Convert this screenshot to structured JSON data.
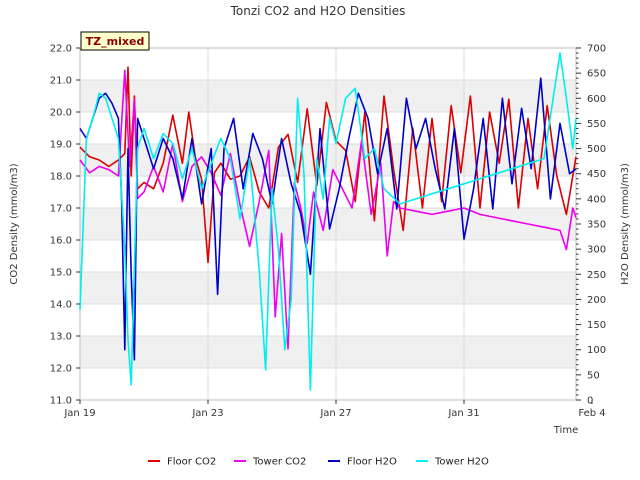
{
  "chart_data": {
    "type": "line",
    "title": "Tonzi CO2 and H2O Densities",
    "badge": "TZ_mixed",
    "xlabel": "Time",
    "ylabel": "CO2 Density (mmol/m3)",
    "y2label": "H2O Density (mmol/m3)",
    "xlim": [
      0,
      15.5
    ],
    "ylim": [
      11.0,
      22.0
    ],
    "y2lim": [
      0,
      700
    ],
    "x_ticks": [
      {
        "x": 0,
        "label": "Jan 19"
      },
      {
        "x": 4,
        "label": "Jan 23"
      },
      {
        "x": 8,
        "label": "Jan 27"
      },
      {
        "x": 12,
        "label": "Jan 31"
      },
      {
        "x": 16,
        "label": "Feb 4"
      }
    ],
    "y_ticks": [
      "11.0",
      "12.0",
      "13.0",
      "14.0",
      "15.0",
      "16.0",
      "17.0",
      "18.0",
      "19.0",
      "20.0",
      "21.0",
      "22.0"
    ],
    "y2_ticks": [
      "0",
      "50",
      "100",
      "150",
      "200",
      "250",
      "300",
      "350",
      "400",
      "450",
      "500",
      "550",
      "600",
      "650",
      "700"
    ],
    "grid": true,
    "legend_position": "bottom",
    "series": [
      {
        "name": "Floor CO2",
        "axis": "left",
        "color": "#dd0000",
        "x": [
          0,
          0.3,
          0.6,
          0.9,
          1.2,
          1.4,
          1.5,
          1.6,
          1.7,
          1.8,
          2.0,
          2.3,
          2.6,
          2.9,
          3.2,
          3.4,
          3.6,
          3.8,
          4.0,
          4.2,
          4.4,
          4.7,
          5.0,
          5.3,
          5.6,
          5.9,
          6.2,
          6.5,
          6.8,
          7.1,
          7.4,
          7.7,
          8.0,
          8.3,
          8.6,
          8.9,
          9.2,
          9.5,
          9.8,
          10.1,
          10.4,
          10.7,
          11.0,
          11.3,
          11.6,
          11.9,
          12.2,
          12.5,
          12.8,
          13.1,
          13.4,
          13.7,
          14.0,
          14.3,
          14.6,
          14.9,
          15.2,
          15.5
        ],
        "y": [
          18.9,
          18.6,
          18.5,
          18.3,
          18.5,
          18.7,
          21.4,
          18.0,
          20.5,
          17.6,
          17.8,
          17.6,
          18.4,
          19.9,
          18.4,
          20.0,
          18.6,
          17.9,
          15.3,
          18.1,
          18.4,
          17.9,
          18.0,
          18.6,
          17.5,
          17.0,
          18.9,
          19.3,
          17.8,
          20.1,
          17.7,
          20.3,
          19.1,
          18.8,
          17.2,
          20.0,
          16.6,
          20.5,
          18.2,
          16.3,
          19.5,
          17.0,
          19.8,
          17.2,
          20.2,
          18.1,
          20.5,
          17.0,
          20.0,
          18.4,
          20.4,
          17.0,
          19.8,
          17.6,
          20.2,
          18.0,
          16.8,
          18.6
        ]
      },
      {
        "name": "Tower CO2",
        "axis": "left",
        "color": "#ee00ee",
        "x": [
          0,
          0.3,
          0.6,
          0.9,
          1.2,
          1.4,
          1.55,
          1.7,
          1.8,
          2.0,
          2.3,
          2.6,
          2.9,
          3.2,
          3.5,
          3.8,
          4.1,
          4.4,
          4.7,
          5.0,
          5.3,
          5.6,
          5.9,
          6.1,
          6.3,
          6.5,
          6.7,
          6.9,
          7.1,
          7.3,
          7.6,
          7.9,
          8.2,
          8.5,
          8.8,
          9.1,
          9.4,
          9.6,
          9.8,
          10.0,
          10.5,
          11.0,
          11.5,
          12.0,
          12.5,
          13.0,
          13.5,
          14.0,
          14.5,
          15.0,
          15.2,
          15.4,
          15.5
        ],
        "y": [
          18.5,
          18.1,
          18.3,
          18.2,
          18.0,
          21.3,
          18.3,
          20.4,
          17.3,
          17.5,
          18.3,
          17.5,
          19.0,
          17.2,
          18.3,
          18.6,
          18.1,
          17.4,
          18.7,
          17.1,
          15.8,
          17.2,
          18.8,
          13.6,
          16.2,
          12.6,
          17.8,
          17.0,
          15.9,
          17.5,
          16.3,
          18.2,
          17.6,
          17.0,
          19.1,
          16.8,
          18.4,
          15.5,
          17.2,
          17.0,
          16.9,
          16.8,
          16.9,
          17.0,
          16.8,
          16.7,
          16.6,
          16.5,
          16.4,
          16.3,
          15.7,
          17.0,
          16.7
        ]
      },
      {
        "name": "Floor H2O",
        "axis": "right",
        "color": "#0000cc",
        "x": [
          0,
          0.2,
          0.4,
          0.6,
          0.8,
          1.0,
          1.2,
          1.3,
          1.4,
          1.5,
          1.6,
          1.7,
          1.8,
          2.0,
          2.3,
          2.6,
          2.9,
          3.2,
          3.5,
          3.8,
          4.1,
          4.3,
          4.5,
          4.8,
          5.1,
          5.4,
          5.7,
          6.0,
          6.3,
          6.6,
          6.9,
          7.2,
          7.5,
          7.8,
          8.1,
          8.4,
          8.7,
          9.0,
          9.3,
          9.6,
          9.9,
          10.2,
          10.5,
          10.8,
          11.1,
          11.4,
          11.7,
          12.0,
          12.3,
          12.6,
          12.9,
          13.2,
          13.5,
          13.8,
          14.1,
          14.4,
          14.7,
          15.0,
          15.3,
          15.5
        ],
        "y": [
          540,
          520,
          560,
          600,
          610,
          590,
          560,
          400,
          100,
          500,
          250,
          80,
          560,
          520,
          460,
          520,
          480,
          400,
          520,
          390,
          500,
          210,
          500,
          560,
          420,
          530,
          480,
          390,
          520,
          430,
          370,
          250,
          540,
          340,
          420,
          520,
          610,
          560,
          450,
          540,
          380,
          600,
          500,
          560,
          460,
          380,
          540,
          320,
          420,
          560,
          380,
          600,
          430,
          580,
          460,
          640,
          400,
          550,
          450,
          460
        ]
      },
      {
        "name": "Tower H2O",
        "axis": "right",
        "color": "#00eeee",
        "x": [
          0,
          0.2,
          0.4,
          0.6,
          0.8,
          1.0,
          1.2,
          1.4,
          1.5,
          1.6,
          1.8,
          2.0,
          2.3,
          2.6,
          2.9,
          3.2,
          3.5,
          3.8,
          4.1,
          4.4,
          4.7,
          5.0,
          5.3,
          5.6,
          5.8,
          6.0,
          6.2,
          6.4,
          6.6,
          6.8,
          7.0,
          7.2,
          7.4,
          7.6,
          7.8,
          8.0,
          8.3,
          8.6,
          8.9,
          9.2,
          9.5,
          10.0,
          10.5,
          11.0,
          11.5,
          12.0,
          12.5,
          13.0,
          13.5,
          14.0,
          14.5,
          15.0,
          15.2,
          15.4,
          15.5
        ],
        "y": [
          180,
          520,
          560,
          610,
          600,
          560,
          520,
          300,
          120,
          30,
          500,
          540,
          480,
          530,
          510,
          440,
          500,
          420,
          470,
          520,
          480,
          360,
          480,
          260,
          60,
          420,
          300,
          100,
          200,
          600,
          450,
          20,
          480,
          400,
          560,
          510,
          600,
          620,
          480,
          500,
          420,
          390,
          400,
          410,
          420,
          430,
          440,
          450,
          460,
          470,
          480,
          690,
          600,
          500,
          560
        ]
      }
    ]
  }
}
